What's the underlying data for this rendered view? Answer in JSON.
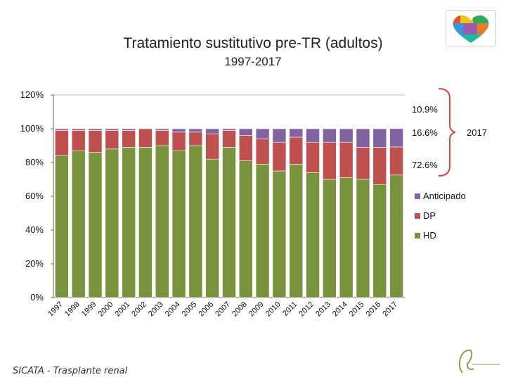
{
  "title": "Tratamiento sustitutivo pre-TR (adultos)",
  "subtitle": "1997-2017",
  "footer": "SICATA - Trasplante renal",
  "chart_data": {
    "type": "bar",
    "stacked": true,
    "categories": [
      "1997",
      "1998",
      "1999",
      "2000",
      "2001",
      "2002",
      "2003",
      "2004",
      "2005",
      "2006",
      "2007",
      "2008",
      "2009",
      "2010",
      "2011",
      "2012",
      "2013",
      "2014",
      "2015",
      "2016",
      "2017"
    ],
    "series": [
      {
        "name": "HD",
        "color": "#77933c",
        "values": [
          84,
          87,
          86,
          88,
          89,
          89,
          90,
          87,
          90,
          82,
          89,
          81,
          79,
          75,
          79,
          74,
          70,
          71,
          70,
          67,
          72.6
        ]
      },
      {
        "name": "DP",
        "color": "#c0504d",
        "values": [
          15,
          12,
          13,
          11,
          10,
          11,
          9,
          11,
          8,
          15,
          10,
          15,
          15,
          17,
          16,
          18,
          22,
          21,
          19,
          22,
          16.6
        ]
      },
      {
        "name": "Anticipado",
        "color": "#8064a2",
        "values": [
          1,
          1,
          1,
          1,
          1,
          0,
          1,
          2,
          2,
          3,
          1,
          4,
          6,
          8,
          5,
          8,
          8,
          8,
          11,
          11,
          10.9
        ]
      }
    ],
    "ylim": [
      0,
      120
    ],
    "yticks": [
      "0%",
      "20%",
      "40%",
      "60%",
      "80%",
      "100%",
      "120%"
    ],
    "legend_position": "right",
    "annotations": {
      "anticipado": "10.9%",
      "dp": "16.6%",
      "hd": "72.6%",
      "year": "2017"
    }
  }
}
